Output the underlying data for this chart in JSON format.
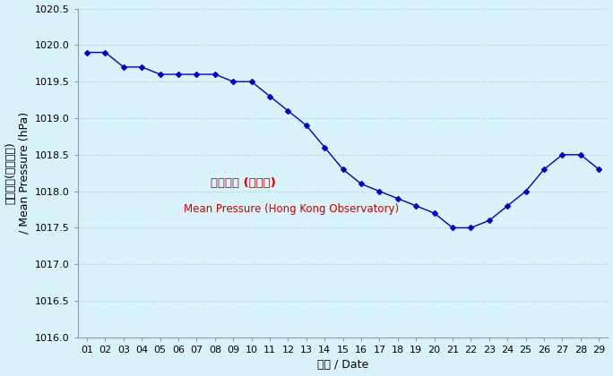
{
  "days": [
    1,
    2,
    3,
    4,
    5,
    6,
    7,
    8,
    9,
    10,
    11,
    12,
    13,
    14,
    15,
    16,
    17,
    18,
    19,
    20,
    21,
    22,
    23,
    24,
    25,
    26,
    27,
    28,
    29
  ],
  "values": [
    1019.9,
    1019.9,
    1019.7,
    1019.7,
    1019.6,
    1019.6,
    1019.6,
    1019.6,
    1019.5,
    1019.5,
    1019.3,
    1019.1,
    1018.9,
    1018.6,
    1018.3,
    1018.1,
    1018.0,
    1017.9,
    1017.8,
    1017.7,
    1017.5,
    1017.5,
    1017.6,
    1017.8,
    1018.0,
    1018.3,
    1018.5,
    1018.5,
    1018.3
  ],
  "line_color": "#0000CD",
  "marker": "D",
  "marker_size": 3,
  "bg_color": "#D8F4FA",
  "plot_bg_color": "#D8F4FA",
  "ylim": [
    1016.0,
    1020.5
  ],
  "yticks": [
    1016.0,
    1016.5,
    1017.0,
    1017.5,
    1018.0,
    1018.5,
    1019.0,
    1019.5,
    1020.0,
    1020.5
  ],
  "xlabel": "日期 / Date",
  "ylabel_chinese": "平均氣壓(百帕斯卡)",
  "ylabel_english": "/ Mean Pressure (hPa)",
  "legend_chinese": "平均氣壓 (天文台)",
  "legend_english": "Mean Pressure (Hong Kong Observatory)",
  "legend_chinese_color": "#CC0000",
  "legend_english_color": "#CC0000",
  "grid_color": "#A0C8DC",
  "tick_fontsize": 8,
  "label_fontsize": 9
}
